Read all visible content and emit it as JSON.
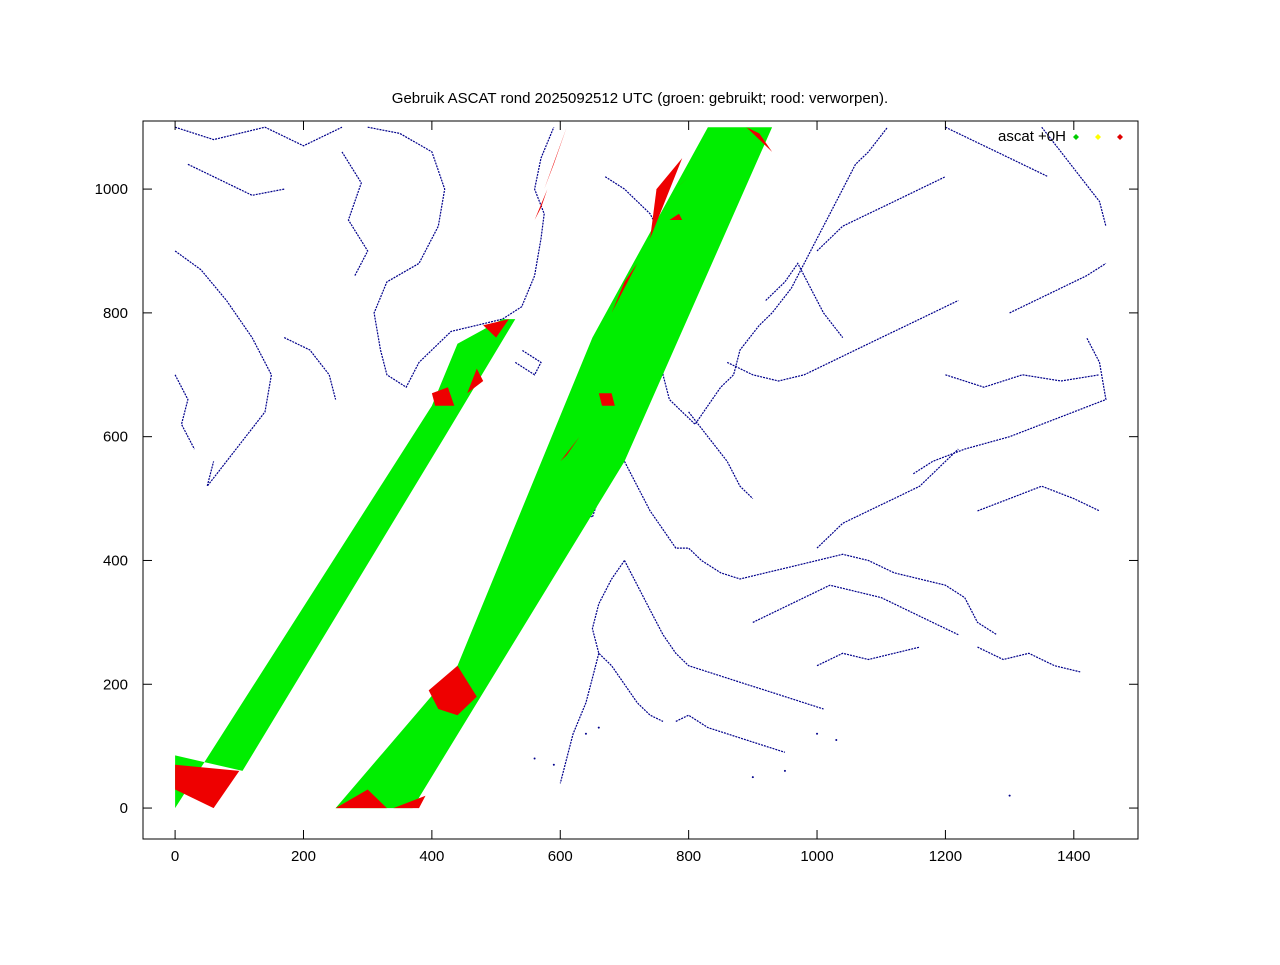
{
  "chart_data": {
    "type": "scatter",
    "title": "Gebruik ASCAT rond 2025092512 UTC (groen: gebruikt; rood: verworpen).",
    "xlabel": "",
    "ylabel": "",
    "xlim": [
      -50,
      1500
    ],
    "ylim": [
      -50,
      1110
    ],
    "x_ticks": [
      0,
      200,
      400,
      600,
      800,
      1000,
      1200,
      1400
    ],
    "y_ticks": [
      0,
      200,
      400,
      600,
      800,
      1000
    ],
    "x_tick_labels": [
      "0",
      "200",
      "400",
      "600",
      "800",
      "1000",
      "1200",
      "1400"
    ],
    "y_tick_labels": [
      "0",
      "200",
      "400",
      "600",
      "800",
      "1000"
    ],
    "grid": false,
    "legend": {
      "position": "top-right",
      "label": "ascat +0H",
      "marker_colors": [
        "#00cc00",
        "#ffff00",
        "#e00000"
      ]
    },
    "colors": {
      "used": "#00ee00",
      "rejected": "#ee0000",
      "coastline": "#00008b",
      "axis": "#000000"
    },
    "series": [
      {
        "status": "used",
        "swaths": [
          [
            [
              0,
              85
            ],
            [
              105,
              60
            ],
            [
              420,
              600
            ],
            [
              530,
              790
            ],
            [
              510,
              790
            ],
            [
              440,
              750
            ],
            [
              400,
              650
            ],
            [
              0,
              0
            ]
          ],
          [
            [
              250,
              0
            ],
            [
              370,
              0
            ],
            [
              700,
              560
            ],
            [
              930,
              1100
            ],
            [
              830,
              1100
            ],
            [
              650,
              760
            ],
            [
              440,
              230
            ],
            [
              250,
              0
            ]
          ]
        ]
      },
      {
        "status": "rejected",
        "regions": [
          [
            [
              0,
              70
            ],
            [
              100,
              60
            ],
            [
              60,
              0
            ],
            [
              0,
              30
            ]
          ],
          [
            [
              250,
              0
            ],
            [
              300,
              30
            ],
            [
              330,
              0
            ]
          ],
          [
            [
              340,
              0
            ],
            [
              390,
              20
            ],
            [
              380,
              0
            ]
          ],
          [
            [
              395,
              190
            ],
            [
              440,
              230
            ],
            [
              470,
              180
            ],
            [
              440,
              150
            ],
            [
              410,
              160
            ]
          ],
          [
            [
              405,
              650
            ],
            [
              435,
              650
            ],
            [
              425,
              680
            ],
            [
              400,
              670
            ]
          ],
          [
            [
              455,
              670
            ],
            [
              480,
              690
            ],
            [
              470,
              710
            ]
          ],
          [
            [
              480,
              780
            ],
            [
              520,
              790
            ],
            [
              500,
              760
            ]
          ],
          [
            [
              665,
              650
            ],
            [
              685,
              650
            ],
            [
              680,
              670
            ],
            [
              660,
              670
            ]
          ],
          [
            [
              600,
              560
            ],
            [
              630,
              600
            ],
            [
              610,
              570
            ]
          ],
          [
            [
              770,
              950
            ],
            [
              790,
              950
            ],
            [
              785,
              960
            ]
          ],
          [
            [
              780,
              1000
            ],
            [
              800,
              1020
            ],
            [
              790,
              1010
            ]
          ],
          [
            [
              740,
              920
            ],
            [
              790,
              1050
            ],
            [
              750,
              1000
            ]
          ],
          [
            [
              680,
              800
            ],
            [
              720,
              880
            ],
            [
              700,
              850
            ]
          ],
          [
            [
              575,
              1000
            ],
            [
              610,
              1100
            ],
            [
              590,
              1040
            ]
          ],
          [
            [
              560,
              950
            ],
            [
              580,
              1000
            ],
            [
              570,
              970
            ]
          ],
          [
            [
              890,
              1100
            ],
            [
              930,
              1060
            ],
            [
              910,
              1090
            ]
          ]
        ]
      }
    ],
    "coastlines": [
      [
        [
          0,
          1100
        ],
        [
          60,
          1080
        ],
        [
          140,
          1100
        ],
        [
          200,
          1070
        ],
        [
          260,
          1100
        ]
      ],
      [
        [
          20,
          1040
        ],
        [
          60,
          1020
        ],
        [
          120,
          990
        ],
        [
          170,
          1000
        ]
      ],
      [
        [
          0,
          900
        ],
        [
          40,
          870
        ],
        [
          80,
          820
        ],
        [
          120,
          760
        ],
        [
          150,
          700
        ],
        [
          140,
          640
        ],
        [
          110,
          600
        ],
        [
          80,
          560
        ],
        [
          50,
          520
        ],
        [
          60,
          560
        ]
      ],
      [
        [
          0,
          700
        ],
        [
          20,
          660
        ],
        [
          10,
          620
        ],
        [
          30,
          580
        ]
      ],
      [
        [
          170,
          760
        ],
        [
          210,
          740
        ],
        [
          240,
          700
        ],
        [
          250,
          660
        ]
      ],
      [
        [
          300,
          1100
        ],
        [
          350,
          1090
        ],
        [
          400,
          1060
        ],
        [
          420,
          1000
        ],
        [
          410,
          940
        ],
        [
          380,
          880
        ],
        [
          330,
          850
        ],
        [
          310,
          800
        ],
        [
          320,
          740
        ],
        [
          330,
          700
        ],
        [
          360,
          680
        ],
        [
          380,
          720
        ],
        [
          430,
          770
        ],
        [
          470,
          780
        ],
        [
          510,
          790
        ],
        [
          540,
          810
        ],
        [
          560,
          860
        ],
        [
          570,
          920
        ],
        [
          575,
          960
        ],
        [
          560,
          1000
        ],
        [
          570,
          1050
        ],
        [
          590,
          1100
        ]
      ],
      [
        [
          260,
          1060
        ],
        [
          290,
          1010
        ],
        [
          270,
          950
        ],
        [
          300,
          900
        ],
        [
          280,
          860
        ]
      ],
      [
        [
          530,
          720
        ],
        [
          560,
          700
        ],
        [
          570,
          720
        ],
        [
          540,
          740
        ]
      ],
      [
        [
          670,
          1020
        ],
        [
          700,
          1000
        ],
        [
          740,
          960
        ],
        [
          760,
          920
        ],
        [
          770,
          880
        ],
        [
          760,
          850
        ],
        [
          750,
          800
        ],
        [
          760,
          760
        ],
        [
          760,
          700
        ],
        [
          770,
          660
        ],
        [
          790,
          640
        ],
        [
          810,
          620
        ],
        [
          830,
          650
        ],
        [
          850,
          680
        ],
        [
          870,
          700
        ],
        [
          880,
          740
        ],
        [
          910,
          780
        ],
        [
          930,
          800
        ],
        [
          960,
          840
        ],
        [
          980,
          880
        ],
        [
          1000,
          920
        ],
        [
          1020,
          960
        ],
        [
          1040,
          1000
        ],
        [
          1060,
          1040
        ],
        [
          1080,
          1060
        ],
        [
          1110,
          1100
        ]
      ],
      [
        [
          800,
          640
        ],
        [
          830,
          600
        ],
        [
          860,
          560
        ],
        [
          880,
          520
        ],
        [
          900,
          500
        ]
      ],
      [
        [
          620,
          560
        ],
        [
          640,
          540
        ],
        [
          660,
          500
        ],
        [
          650,
          470
        ],
        [
          630,
          480
        ]
      ],
      [
        [
          600,
          500
        ],
        [
          620,
          480
        ],
        [
          610,
          460
        ]
      ],
      [
        [
          700,
          560
        ],
        [
          720,
          520
        ],
        [
          740,
          480
        ],
        [
          760,
          450
        ],
        [
          780,
          420
        ],
        [
          800,
          420
        ],
        [
          820,
          400
        ],
        [
          850,
          380
        ],
        [
          880,
          370
        ],
        [
          920,
          380
        ],
        [
          960,
          390
        ],
        [
          1000,
          400
        ],
        [
          1040,
          410
        ],
        [
          1080,
          400
        ],
        [
          1120,
          380
        ],
        [
          1160,
          370
        ],
        [
          1200,
          360
        ],
        [
          1230,
          340
        ],
        [
          1250,
          300
        ],
        [
          1280,
          280
        ]
      ],
      [
        [
          1000,
          420
        ],
        [
          1040,
          460
        ],
        [
          1080,
          480
        ],
        [
          1120,
          500
        ],
        [
          1160,
          520
        ],
        [
          1180,
          540
        ],
        [
          1200,
          560
        ],
        [
          1220,
          580
        ]
      ],
      [
        [
          1150,
          540
        ],
        [
          1180,
          560
        ],
        [
          1230,
          580
        ],
        [
          1300,
          600
        ],
        [
          1350,
          620
        ],
        [
          1400,
          640
        ],
        [
          1450,
          660
        ],
        [
          1440,
          720
        ],
        [
          1420,
          760
        ]
      ],
      [
        [
          1250,
          480
        ],
        [
          1300,
          500
        ],
        [
          1350,
          520
        ],
        [
          1400,
          500
        ],
        [
          1440,
          480
        ]
      ],
      [
        [
          1000,
          900
        ],
        [
          1040,
          940
        ],
        [
          1080,
          960
        ],
        [
          1120,
          980
        ],
        [
          1160,
          1000
        ],
        [
          1200,
          1020
        ]
      ],
      [
        [
          920,
          820
        ],
        [
          950,
          850
        ],
        [
          970,
          880
        ],
        [
          990,
          840
        ],
        [
          1010,
          800
        ],
        [
          1040,
          760
        ]
      ],
      [
        [
          860,
          720
        ],
        [
          900,
          700
        ],
        [
          940,
          690
        ],
        [
          980,
          700
        ],
        [
          1020,
          720
        ],
        [
          1060,
          740
        ],
        [
          1100,
          760
        ],
        [
          1140,
          780
        ],
        [
          1180,
          800
        ],
        [
          1220,
          820
        ]
      ],
      [
        [
          1200,
          700
        ],
        [
          1260,
          680
        ],
        [
          1320,
          700
        ],
        [
          1380,
          690
        ],
        [
          1440,
          700
        ]
      ],
      [
        [
          1300,
          800
        ],
        [
          1340,
          820
        ],
        [
          1380,
          840
        ],
        [
          1420,
          860
        ],
        [
          1450,
          880
        ]
      ],
      [
        [
          1350,
          1100
        ],
        [
          1380,
          1060
        ],
        [
          1410,
          1020
        ],
        [
          1440,
          980
        ],
        [
          1450,
          940
        ]
      ],
      [
        [
          1200,
          1100
        ],
        [
          1240,
          1080
        ],
        [
          1280,
          1060
        ],
        [
          1320,
          1040
        ],
        [
          1360,
          1020
        ]
      ],
      [
        [
          700,
          400
        ],
        [
          720,
          360
        ],
        [
          740,
          320
        ],
        [
          760,
          280
        ],
        [
          780,
          250
        ],
        [
          800,
          230
        ],
        [
          830,
          220
        ],
        [
          860,
          210
        ],
        [
          890,
          200
        ],
        [
          920,
          190
        ],
        [
          950,
          180
        ],
        [
          980,
          170
        ],
        [
          1010,
          160
        ]
      ],
      [
        [
          700,
          400
        ],
        [
          680,
          370
        ],
        [
          660,
          330
        ],
        [
          650,
          290
        ],
        [
          660,
          250
        ],
        [
          680,
          230
        ],
        [
          700,
          200
        ],
        [
          720,
          170
        ],
        [
          740,
          150
        ],
        [
          760,
          140
        ]
      ],
      [
        [
          780,
          140
        ],
        [
          800,
          150
        ],
        [
          830,
          130
        ],
        [
          860,
          120
        ],
        [
          890,
          110
        ],
        [
          920,
          100
        ],
        [
          950,
          90
        ]
      ],
      [
        [
          660,
          250
        ],
        [
          650,
          210
        ],
        [
          640,
          170
        ],
        [
          620,
          120
        ],
        [
          610,
          80
        ],
        [
          600,
          40
        ]
      ],
      [
        [
          900,
          300
        ],
        [
          940,
          320
        ],
        [
          980,
          340
        ],
        [
          1020,
          360
        ],
        [
          1060,
          350
        ],
        [
          1100,
          340
        ],
        [
          1140,
          320
        ],
        [
          1180,
          300
        ],
        [
          1220,
          280
        ]
      ],
      [
        [
          1000,
          230
        ],
        [
          1040,
          250
        ],
        [
          1080,
          240
        ],
        [
          1120,
          250
        ],
        [
          1160,
          260
        ]
      ],
      [
        [
          1250,
          260
        ],
        [
          1290,
          240
        ],
        [
          1330,
          250
        ],
        [
          1370,
          230
        ],
        [
          1410,
          220
        ]
      ]
    ],
    "sea_points": [
      [
        560,
        80
      ],
      [
        590,
        70
      ],
      [
        640,
        120
      ],
      [
        660,
        130
      ],
      [
        1300,
        20
      ],
      [
        950,
        60
      ],
      [
        1000,
        120
      ],
      [
        1030,
        110
      ],
      [
        900,
        50
      ]
    ]
  }
}
